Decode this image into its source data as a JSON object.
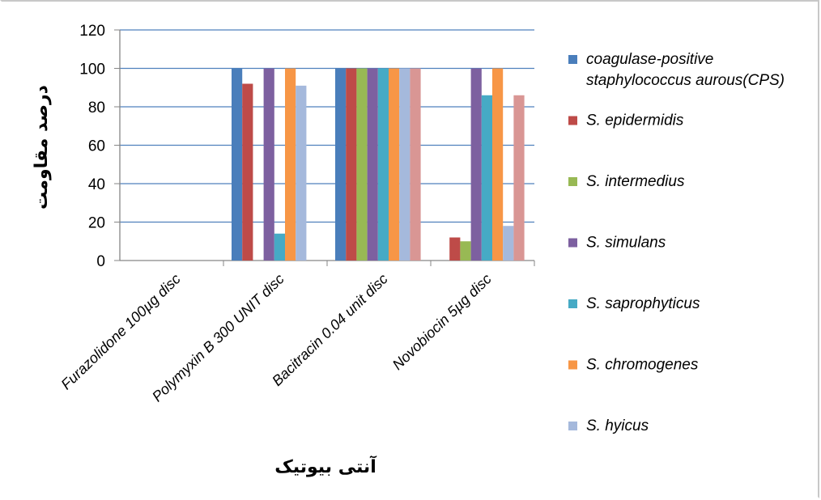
{
  "chart_data": {
    "type": "bar",
    "title": "",
    "xlabel": "آنتی بیوتیک",
    "ylabel": "درصد مقاومت",
    "ylim": [
      0,
      120
    ],
    "yticks": [
      "0",
      "20",
      "40",
      "60",
      "80",
      "100",
      "120"
    ],
    "grid": true,
    "legend_position": "right",
    "categories": [
      "Furazolidone 100µg disc",
      "Polymyxin B 300 UNIT disc",
      "Bacitracin 0.04 unit disc",
      "Novobiocin 5µg disc"
    ],
    "series": [
      {
        "name": "coagulase-positive staphylococcus aurous(CPS)",
        "legend_lines": [
          "coagulase-positive",
          "staphylococcus aurous(CPS)"
        ],
        "color": "#4a7ebb",
        "values": [
          0,
          100,
          100,
          0
        ]
      },
      {
        "name": "S. epidermidis",
        "legend_lines": [
          "S. epidermidis"
        ],
        "color": "#be4b48",
        "values": [
          0,
          92,
          100,
          12
        ]
      },
      {
        "name": "S. intermedius",
        "legend_lines": [
          "S. intermedius"
        ],
        "color": "#98b954",
        "values": [
          0,
          0,
          100,
          10
        ]
      },
      {
        "name": "S. simulans",
        "legend_lines": [
          "S. simulans"
        ],
        "color": "#7d60a0",
        "values": [
          0,
          100,
          100,
          100
        ]
      },
      {
        "name": "S. saprophyticus",
        "legend_lines": [
          "S. saprophyticus"
        ],
        "color": "#46aac5",
        "values": [
          0,
          14,
          100,
          86
        ]
      },
      {
        "name": "S. chromogenes",
        "legend_lines": [
          "S. chromogenes"
        ],
        "color": "#f79646",
        "values": [
          0,
          100,
          100,
          100
        ]
      },
      {
        "name": "S. hyicus",
        "legend_lines": [
          "S. hyicus"
        ],
        "color": "#a5b9dc",
        "values": [
          0,
          91,
          100,
          18
        ]
      },
      {
        "name": "",
        "legend_lines": [],
        "color": "#d99694",
        "values": [
          0,
          0,
          100,
          86
        ]
      }
    ]
  }
}
